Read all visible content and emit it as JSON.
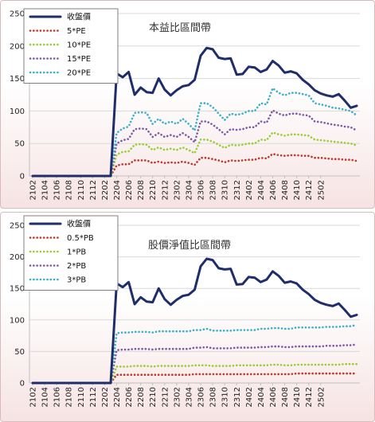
{
  "chart_data": [
    {
      "type": "line",
      "title": "本益比區間帶",
      "ylim": [
        0,
        250
      ],
      "yticks": [
        0,
        50,
        100,
        150,
        200,
        250
      ],
      "xtick_labels": [
        "2102",
        "2104",
        "2106",
        "2108",
        "2110",
        "2112",
        "2202",
        "2204",
        "2206",
        "2208",
        "2210",
        "2212",
        "2302",
        "2304",
        "2306",
        "2308",
        "2310",
        "2312",
        "2402",
        "2404",
        "2406",
        "2408",
        "2410",
        "2412",
        "2502"
      ],
      "grid": true,
      "legend_position": "top-left",
      "series": [
        {
          "name": "收盤價",
          "color": "#1f2d6b",
          "style": "solid",
          "values": [
            0,
            0,
            0,
            0,
            0,
            0,
            0,
            0,
            0,
            0,
            0,
            0,
            0,
            0,
            158,
            152,
            160,
            125,
            136,
            129,
            128,
            150,
            133,
            124,
            132,
            138,
            140,
            148,
            185,
            197,
            195,
            182,
            180,
            181,
            156,
            157,
            168,
            167,
            160,
            164,
            177,
            170,
            159,
            161,
            158,
            148,
            141,
            132,
            127,
            124,
            122,
            126,
            116,
            105,
            108
          ]
        },
        {
          "name": "5*PE",
          "color": "#c0392b",
          "style": "dotted",
          "values": [
            0,
            0,
            0,
            0,
            0,
            0,
            0,
            0,
            0,
            0,
            0,
            0,
            0,
            0,
            16,
            18,
            18,
            24,
            24,
            24,
            20,
            22,
            20,
            21,
            20,
            22,
            20,
            17,
            28,
            28,
            26,
            24,
            21,
            24,
            23,
            24,
            25,
            25,
            28,
            27,
            34,
            32,
            31,
            32,
            32,
            31,
            31,
            28,
            28,
            27,
            26,
            26,
            25,
            25,
            23
          ]
        },
        {
          "name": "10*PE",
          "color": "#9acd32",
          "style": "dotted",
          "values": [
            0,
            0,
            0,
            0,
            0,
            0,
            0,
            0,
            0,
            0,
            0,
            0,
            0,
            0,
            33,
            37,
            38,
            48,
            49,
            48,
            40,
            44,
            40,
            42,
            40,
            44,
            40,
            35,
            56,
            56,
            53,
            48,
            43,
            48,
            47,
            48,
            50,
            50,
            56,
            55,
            67,
            64,
            62,
            64,
            64,
            63,
            62,
            56,
            55,
            54,
            53,
            52,
            51,
            50,
            47
          ]
        },
        {
          "name": "15*PE",
          "color": "#7d5ba6",
          "style": "dotted",
          "values": [
            0,
            0,
            0,
            0,
            0,
            0,
            0,
            0,
            0,
            0,
            0,
            0,
            0,
            0,
            50,
            55,
            57,
            72,
            73,
            72,
            60,
            66,
            60,
            63,
            60,
            66,
            60,
            52,
            84,
            84,
            79,
            72,
            64,
            72,
            71,
            72,
            75,
            75,
            84,
            82,
            101,
            96,
            93,
            96,
            96,
            94,
            93,
            84,
            83,
            81,
            79,
            78,
            76,
            75,
            70
          ]
        },
        {
          "name": "20*PE",
          "color": "#3bb0c9",
          "style": "dotted",
          "values": [
            0,
            0,
            0,
            0,
            0,
            0,
            0,
            0,
            0,
            0,
            0,
            0,
            0,
            0,
            66,
            73,
            76,
            97,
            98,
            97,
            80,
            88,
            80,
            84,
            80,
            88,
            80,
            70,
            112,
            112,
            106,
            96,
            86,
            96,
            94,
            96,
            100,
            100,
            112,
            110,
            135,
            128,
            124,
            128,
            128,
            126,
            124,
            112,
            110,
            108,
            105,
            104,
            102,
            100,
            93
          ]
        }
      ]
    },
    {
      "type": "line",
      "title": "股價淨值比區間帶",
      "ylim": [
        0,
        250
      ],
      "yticks": [
        0,
        50,
        100,
        150,
        200,
        250
      ],
      "xtick_labels": [
        "2102",
        "2104",
        "2106",
        "2108",
        "2110",
        "2112",
        "2202",
        "2204",
        "2206",
        "2208",
        "2210",
        "2212",
        "2302",
        "2304",
        "2306",
        "2308",
        "2310",
        "2312",
        "2402",
        "2404",
        "2406",
        "2408",
        "2410",
        "2412",
        "2502"
      ],
      "grid": true,
      "legend_position": "top-left",
      "series": [
        {
          "name": "收盤價",
          "color": "#1f2d6b",
          "style": "solid",
          "values": [
            0,
            0,
            0,
            0,
            0,
            0,
            0,
            0,
            0,
            0,
            0,
            0,
            0,
            0,
            158,
            152,
            160,
            125,
            136,
            129,
            128,
            150,
            133,
            124,
            132,
            138,
            140,
            148,
            185,
            197,
            195,
            182,
            180,
            181,
            156,
            157,
            168,
            167,
            160,
            164,
            177,
            170,
            159,
            161,
            158,
            148,
            141,
            132,
            127,
            124,
            122,
            126,
            116,
            105,
            108
          ]
        },
        {
          "name": "0.5*PB",
          "color": "#c0392b",
          "style": "dotted",
          "values": [
            0,
            0,
            0,
            0,
            0,
            0,
            0,
            0,
            0,
            0,
            0,
            0,
            0,
            0,
            13,
            13,
            13,
            13,
            13,
            13,
            13,
            13,
            13,
            13,
            13,
            13,
            13,
            14,
            14,
            14,
            14,
            14,
            14,
            14,
            14,
            14,
            14,
            14,
            14,
            14,
            14,
            14,
            14,
            14,
            15,
            15,
            15,
            15,
            15,
            15,
            15,
            15,
            15,
            15,
            15
          ]
        },
        {
          "name": "1*PB",
          "color": "#9acd32",
          "style": "dotted",
          "values": [
            0,
            0,
            0,
            0,
            0,
            0,
            0,
            0,
            0,
            0,
            0,
            0,
            0,
            0,
            26,
            26,
            26,
            27,
            27,
            27,
            26,
            27,
            27,
            27,
            27,
            27,
            27,
            28,
            28,
            28,
            27,
            27,
            27,
            27,
            28,
            28,
            28,
            28,
            28,
            28,
            29,
            29,
            28,
            28,
            29,
            29,
            29,
            29,
            29,
            29,
            29,
            29,
            30,
            30,
            30
          ]
        },
        {
          "name": "2*PB",
          "color": "#7d5ba6",
          "style": "dotted",
          "values": [
            0,
            0,
            0,
            0,
            0,
            0,
            0,
            0,
            0,
            0,
            0,
            0,
            0,
            0,
            52,
            53,
            53,
            54,
            54,
            54,
            53,
            54,
            54,
            54,
            54,
            54,
            54,
            56,
            56,
            57,
            55,
            55,
            55,
            55,
            56,
            56,
            56,
            56,
            57,
            57,
            58,
            58,
            57,
            57,
            58,
            58,
            58,
            58,
            58,
            59,
            59,
            59,
            60,
            60,
            61
          ]
        },
        {
          "name": "3*PB",
          "color": "#3bb0c9",
          "style": "dotted",
          "values": [
            0,
            0,
            0,
            0,
            0,
            0,
            0,
            0,
            0,
            0,
            0,
            0,
            0,
            0,
            79,
            80,
            80,
            81,
            81,
            81,
            80,
            82,
            82,
            82,
            82,
            82,
            82,
            84,
            84,
            86,
            83,
            83,
            83,
            83,
            84,
            84,
            84,
            84,
            86,
            86,
            87,
            87,
            86,
            86,
            88,
            88,
            88,
            88,
            88,
            89,
            89,
            89,
            90,
            90,
            92
          ]
        }
      ]
    }
  ]
}
